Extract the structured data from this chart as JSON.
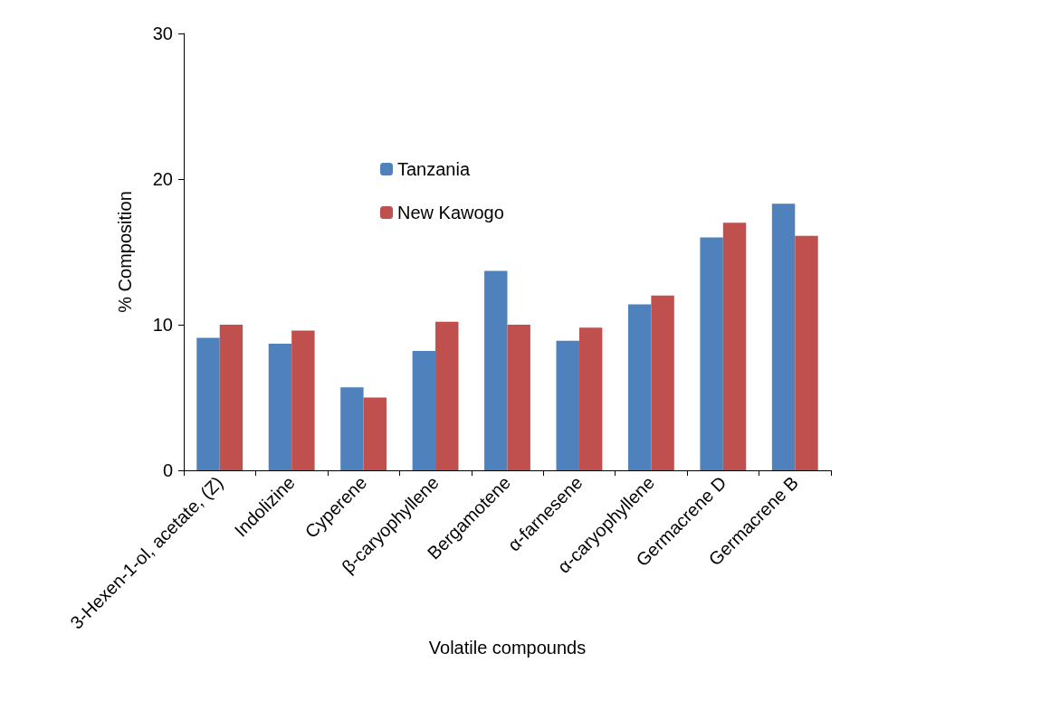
{
  "chart_data": {
    "type": "bar",
    "xlabel": "Volatile compounds",
    "ylabel": "% Composition",
    "categories": [
      "3-Hexen-1-ol, acetate, (Z)",
      "Indolizine",
      "Cyperene",
      "β-caryophyllene",
      "Bergamotene",
      "α-farnesene",
      "α-caryophyllene",
      "Germacrene D",
      "Germacrene B"
    ],
    "series": [
      {
        "name": "Tanzania",
        "color": "#4f81bd",
        "values": [
          9.1,
          8.7,
          5.7,
          8.2,
          13.7,
          8.9,
          11.4,
          16.0,
          18.3
        ]
      },
      {
        "name": "New Kawogo",
        "color": "#c0504d",
        "values": [
          10.0,
          9.6,
          5.0,
          10.2,
          10.0,
          9.8,
          12.0,
          17.0,
          16.1
        ]
      }
    ],
    "ylim": [
      0,
      30
    ],
    "yticks": [
      0,
      10,
      20,
      30
    ],
    "grid": false,
    "legend": "top"
  }
}
